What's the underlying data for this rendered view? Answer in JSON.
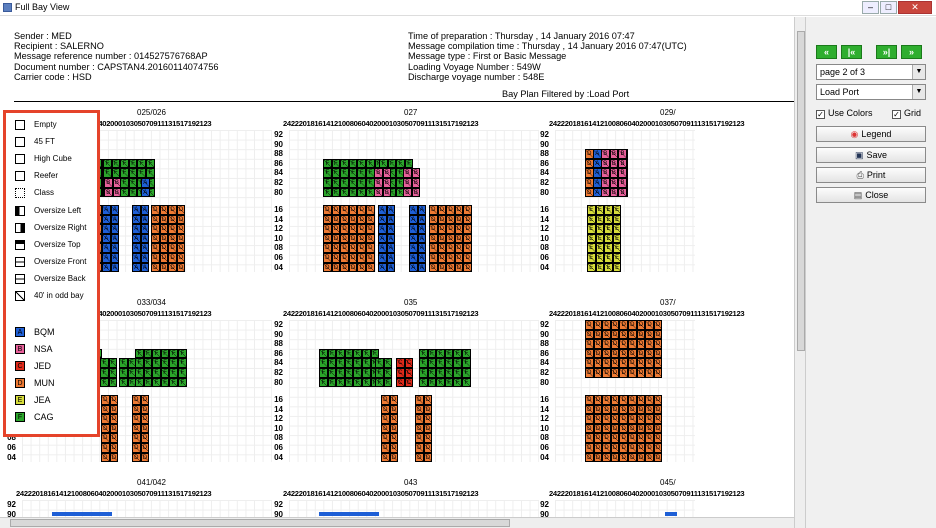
{
  "window": {
    "title": "Full Bay View"
  },
  "header": {
    "left": [
      "Sender : MED",
      "Recipient : SALERNO",
      "Message reference number : 014527576768AP",
      "Document number : CAPSTAN4.20160114074756",
      "Carrier code : HSD"
    ],
    "right": [
      "Time of preparation : Thursday , 14 January 2016  07:47",
      "Message compilation time : Thursday , 14 January 2016 07:47(UTC)",
      "Message type : First or Basic Message",
      "Loading Voyage Number : 549W",
      "Discharge voyage number : 548E"
    ],
    "filter": "Bay Plan Filtered by :Load Port"
  },
  "legend": {
    "types": [
      {
        "label": "Empty",
        "icon": "empty-box-icon"
      },
      {
        "label": "45 FT",
        "icon": "45ft-icon"
      },
      {
        "label": "High Cube",
        "icon": "high-cube-icon"
      },
      {
        "label": "Reefer",
        "icon": "reefer-icon"
      },
      {
        "label": "Class",
        "icon": "class-icon"
      },
      {
        "label": "Oversize Left",
        "icon": "oversize-left-icon"
      },
      {
        "label": "Oversize Right",
        "icon": "oversize-right-icon"
      },
      {
        "label": "Oversize Top",
        "icon": "oversize-top-icon"
      },
      {
        "label": "Oversize Front",
        "icon": "oversize-front-icon"
      },
      {
        "label": "Oversize Back",
        "icon": "oversize-back-icon"
      },
      {
        "label": "40' in odd bay",
        "icon": "odd-bay-icon"
      }
    ],
    "ports": [
      {
        "code": "A",
        "label": "BQM",
        "color": "#1e5fd6"
      },
      {
        "code": "B",
        "label": "NSA",
        "color": "#e8609a"
      },
      {
        "code": "C",
        "label": "JED",
        "color": "#e02a1a"
      },
      {
        "code": "D",
        "label": "MUN",
        "color": "#ee7a33"
      },
      {
        "code": "E",
        "label": "JEA",
        "color": "#d6dc3a"
      },
      {
        "code": "F",
        "label": "CAG",
        "color": "#2ba52b"
      }
    ]
  },
  "rowheader": "24222018161412100806040200010305070911131517192123",
  "tiers": [
    "92",
    "90",
    "88",
    "86",
    "84",
    "82",
    "80",
    "16",
    "14",
    "12",
    "10",
    "08",
    "06",
    "04"
  ],
  "bays": [
    {
      "title": "025/026"
    },
    {
      "title": "027"
    },
    {
      "title": "029/"
    },
    {
      "title": "033/034"
    },
    {
      "title": "035"
    },
    {
      "title": "037/"
    },
    {
      "title": "041/042"
    },
    {
      "title": "043"
    },
    {
      "title": "045/"
    }
  ],
  "panel": {
    "nav": [
      "«",
      "|«",
      "»|",
      "»"
    ],
    "page": "page 2 of 3",
    "filter": "Load Port",
    "use_colors": "Use Colors",
    "grid": "Grid",
    "legend": "Legend",
    "save": "Save",
    "print": "Print",
    "close": "Close"
  }
}
